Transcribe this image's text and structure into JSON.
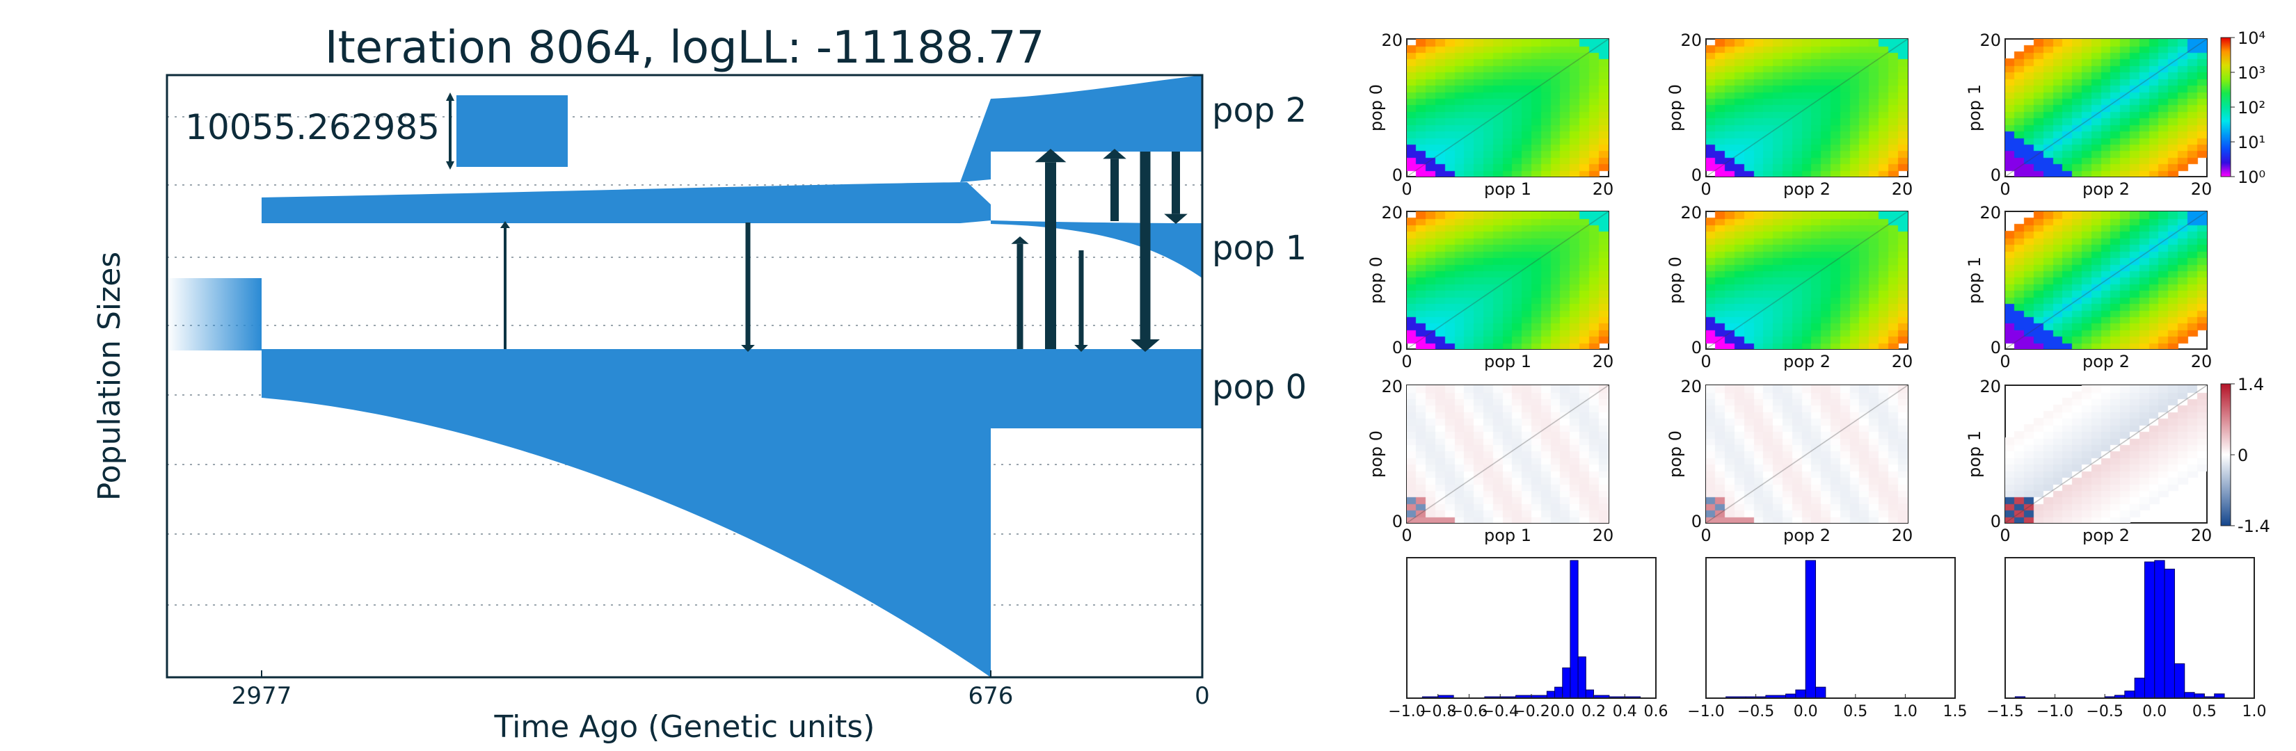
{
  "chart_data": [
    {
      "type": "demography",
      "title": "Iteration 8064, logLL:  -11188.77",
      "xlabel": "Time Ago (Genetic units)",
      "ylabel": "Population Sizes",
      "x_ticks": [
        "2977",
        "676",
        "0"
      ],
      "scale_bar_label": "10055.262985",
      "populations": [
        {
          "name": "pop 2"
        },
        {
          "name": "pop 1"
        },
        {
          "name": "pop 0"
        }
      ],
      "colors": {
        "population": "#2a8ad4",
        "migration": "#0d3544",
        "grid": "#9aa5ad"
      }
    },
    {
      "type": "heatmap",
      "row": "observed joint SFS",
      "colorbar_ticks": [
        "10⁴",
        "10³",
        "10²",
        "10¹",
        "10⁰"
      ],
      "panels": [
        {
          "ylabel": "pop 0",
          "xlabel": "pop 1",
          "xticks": [
            "0",
            "20"
          ],
          "yticks": [
            "20",
            "0"
          ]
        },
        {
          "ylabel": "pop 0",
          "xlabel": "pop 2",
          "xticks": [
            "0",
            "20"
          ],
          "yticks": [
            "20",
            "0"
          ]
        },
        {
          "ylabel": "pop 1",
          "xlabel": "pop 2",
          "xticks": [
            "0",
            "20"
          ],
          "yticks": [
            "20",
            "0"
          ]
        }
      ]
    },
    {
      "type": "heatmap",
      "row": "model joint SFS",
      "panels": [
        {
          "ylabel": "pop 0",
          "xlabel": "pop 1",
          "xticks": [
            "0",
            "20"
          ],
          "yticks": [
            "20",
            "0"
          ]
        },
        {
          "ylabel": "pop 0",
          "xlabel": "pop 2",
          "xticks": [
            "0",
            "20"
          ],
          "yticks": [
            "20",
            "0"
          ]
        },
        {
          "ylabel": "pop 1",
          "xlabel": "pop 2",
          "xticks": [
            "0",
            "20"
          ],
          "yticks": [
            "20",
            "0"
          ]
        }
      ]
    },
    {
      "type": "heatmap",
      "row": "residuals",
      "colorbar_ticks": [
        "1.4",
        "0",
        "-1.4"
      ],
      "panels": [
        {
          "ylabel": "pop 0",
          "xlabel": "pop 1",
          "xticks": [
            "0",
            "20"
          ],
          "yticks": [
            "20",
            "0"
          ]
        },
        {
          "ylabel": "pop 0",
          "xlabel": "pop 2",
          "xticks": [
            "0",
            "20"
          ],
          "yticks": [
            "20",
            "0"
          ]
        },
        {
          "ylabel": "pop 1",
          "xlabel": "pop 2",
          "xticks": [
            "0",
            "20"
          ],
          "yticks": [
            "20",
            "0"
          ]
        }
      ]
    },
    {
      "type": "bar",
      "row": "residual histograms",
      "bar_color": "#0000ff",
      "panels": [
        {
          "xticks": [
            "-1.0",
            "-0.8",
            "-0.6",
            "-0.4",
            "-0.2",
            "0.0",
            "0.2",
            "0.4",
            "0.6"
          ],
          "xlim": [
            -1.0,
            0.6
          ],
          "bin_edges": [
            -0.9,
            -0.8,
            -0.7,
            -0.6,
            -0.5,
            -0.4,
            -0.3,
            -0.2,
            -0.1,
            -0.05,
            0.0,
            0.05,
            0.1,
            0.15,
            0.2,
            0.3,
            0.4,
            0.5
          ],
          "counts": [
            1,
            2,
            0,
            0,
            1,
            1,
            2,
            2,
            5,
            8,
            22,
            100,
            30,
            6,
            2,
            1,
            1
          ]
        },
        {
          "xticks": [
            "-1.0",
            "-0.5",
            "0.0",
            "0.5",
            "1.0",
            "1.5"
          ],
          "xlim": [
            -1.0,
            1.5
          ],
          "bin_edges": [
            -0.8,
            -0.6,
            -0.4,
            -0.2,
            -0.1,
            0.0,
            0.1,
            0.2
          ],
          "counts": [
            1,
            1,
            2,
            3,
            6,
            100,
            8
          ]
        },
        {
          "xticks": [
            "-1.5",
            "-1.0",
            "-0.5",
            "0.0",
            "0.5",
            "1.0"
          ],
          "xlim": [
            -1.5,
            1.0
          ],
          "bin_edges": [
            -1.4,
            -1.3,
            -0.5,
            -0.4,
            -0.3,
            -0.2,
            -0.1,
            0.0,
            0.1,
            0.2,
            0.3,
            0.4,
            0.5,
            0.6,
            0.7
          ],
          "counts": [
            1,
            0,
            1,
            2,
            5,
            14,
            95,
            96,
            90,
            24,
            4,
            3,
            1,
            3
          ]
        }
      ]
    }
  ]
}
